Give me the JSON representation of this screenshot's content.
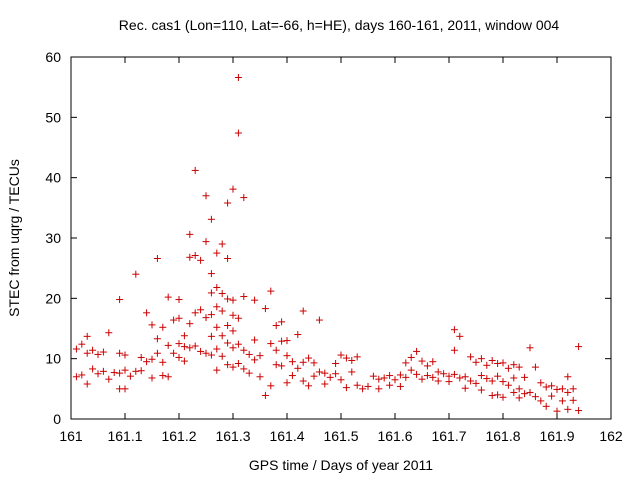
{
  "chart_data": {
    "type": "scatter",
    "title": "Rec. cas1 (Lon=110, Lat=-66, h=HE), days 160-161, 2011, window 004",
    "xlabel": "GPS time / Days of year 2011",
    "ylabel": "STEC from uqrg / TECUs",
    "xlim": [
      161,
      162
    ],
    "ylim": [
      0,
      60
    ],
    "xticks": [
      "161",
      "161.1",
      "161.2",
      "161.3",
      "161.4",
      "161.5",
      "161.6",
      "161.7",
      "161.8",
      "161.9",
      "162"
    ],
    "yticks": [
      "0",
      "10",
      "20",
      "30",
      "40",
      "50",
      "60"
    ],
    "grid": false,
    "legend": "none",
    "marker": "plus",
    "marker_color": "#cc0000",
    "series": [
      {
        "points": [
          [
            161.01,
            11.6
          ],
          [
            161.01,
            7.0
          ],
          [
            161.02,
            12.4
          ],
          [
            161.02,
            7.3
          ],
          [
            161.03,
            13.7
          ],
          [
            161.03,
            10.9
          ],
          [
            161.03,
            5.8
          ],
          [
            161.04,
            11.4
          ],
          [
            161.04,
            8.3
          ],
          [
            161.05,
            10.7
          ],
          [
            161.05,
            7.5
          ],
          [
            161.06,
            11.1
          ],
          [
            161.06,
            7.9
          ],
          [
            161.07,
            14.3
          ],
          [
            161.07,
            6.6
          ],
          [
            161.08,
            7.7
          ],
          [
            161.09,
            19.8
          ],
          [
            161.09,
            10.9
          ],
          [
            161.09,
            7.6
          ],
          [
            161.09,
            5.0
          ],
          [
            161.1,
            10.6
          ],
          [
            161.1,
            8.1
          ],
          [
            161.1,
            5.0
          ],
          [
            161.11,
            7.1
          ],
          [
            161.12,
            24.0
          ],
          [
            161.12,
            7.9
          ],
          [
            161.13,
            10.2
          ],
          [
            161.13,
            8.0
          ],
          [
            161.14,
            17.6
          ],
          [
            161.14,
            9.5
          ],
          [
            161.15,
            15.6
          ],
          [
            161.15,
            9.9
          ],
          [
            161.15,
            6.8
          ],
          [
            161.16,
            26.6
          ],
          [
            161.16,
            13.3
          ],
          [
            161.16,
            10.9
          ],
          [
            161.17,
            15.2
          ],
          [
            161.17,
            9.4
          ],
          [
            161.17,
            7.2
          ],
          [
            161.18,
            20.2
          ],
          [
            161.18,
            12.2
          ],
          [
            161.18,
            7.0
          ],
          [
            161.19,
            16.4
          ],
          [
            161.19,
            10.9
          ],
          [
            161.2,
            19.8
          ],
          [
            161.2,
            16.7
          ],
          [
            161.2,
            12.5
          ],
          [
            161.2,
            10.2
          ],
          [
            161.21,
            13.8
          ],
          [
            161.21,
            12.0
          ],
          [
            161.21,
            9.6
          ],
          [
            161.22,
            30.6
          ],
          [
            161.22,
            26.8
          ],
          [
            161.22,
            15.8
          ],
          [
            161.22,
            11.8
          ],
          [
            161.23,
            27.1
          ],
          [
            161.23,
            41.2
          ],
          [
            161.23,
            17.6
          ],
          [
            161.23,
            12.1
          ],
          [
            161.24,
            26.3
          ],
          [
            161.24,
            18.1
          ],
          [
            161.24,
            11.2
          ],
          [
            161.25,
            37.0
          ],
          [
            161.25,
            29.4
          ],
          [
            161.25,
            16.8
          ],
          [
            161.25,
            10.9
          ],
          [
            161.26,
            33.1
          ],
          [
            161.26,
            24.1
          ],
          [
            161.26,
            20.9
          ],
          [
            161.26,
            17.3
          ],
          [
            161.26,
            13.7
          ],
          [
            161.26,
            10.6
          ],
          [
            161.27,
            27.5
          ],
          [
            161.27,
            21.8
          ],
          [
            161.27,
            18.6
          ],
          [
            161.27,
            15.2
          ],
          [
            161.27,
            11.6
          ],
          [
            161.27,
            8.1
          ],
          [
            161.28,
            29.0
          ],
          [
            161.28,
            20.8
          ],
          [
            161.28,
            17.9
          ],
          [
            161.28,
            13.8
          ],
          [
            161.28,
            10.4
          ],
          [
            161.29,
            35.8
          ],
          [
            161.29,
            26.6
          ],
          [
            161.29,
            19.9
          ],
          [
            161.29,
            15.5
          ],
          [
            161.29,
            12.6
          ],
          [
            161.29,
            9.0
          ],
          [
            161.3,
            38.1
          ],
          [
            161.3,
            19.7
          ],
          [
            161.3,
            17.2
          ],
          [
            161.3,
            14.6
          ],
          [
            161.3,
            11.8
          ],
          [
            161.3,
            8.6
          ],
          [
            161.31,
            47.4
          ],
          [
            161.31,
            56.6
          ],
          [
            161.31,
            16.7
          ],
          [
            161.31,
            12.4
          ],
          [
            161.31,
            9.2
          ],
          [
            161.32,
            36.7
          ],
          [
            161.32,
            20.3
          ],
          [
            161.32,
            11.4
          ],
          [
            161.32,
            8.3
          ],
          [
            161.33,
            10.7
          ],
          [
            161.33,
            7.6
          ],
          [
            161.34,
            19.7
          ],
          [
            161.34,
            13.1
          ],
          [
            161.34,
            9.8
          ],
          [
            161.35,
            10.5
          ],
          [
            161.35,
            7.0
          ],
          [
            161.36,
            18.3
          ],
          [
            161.36,
            3.9
          ],
          [
            161.37,
            21.2
          ],
          [
            161.37,
            12.5
          ],
          [
            161.37,
            5.5
          ],
          [
            161.38,
            15.5
          ],
          [
            161.38,
            11.4
          ],
          [
            161.38,
            9.0
          ],
          [
            161.39,
            16.1
          ],
          [
            161.39,
            12.9
          ],
          [
            161.39,
            8.8
          ],
          [
            161.4,
            13.0
          ],
          [
            161.4,
            10.5
          ],
          [
            161.4,
            6.0
          ],
          [
            161.41,
            9.5
          ],
          [
            161.41,
            7.2
          ],
          [
            161.42,
            14.0
          ],
          [
            161.42,
            8.4
          ],
          [
            161.43,
            17.9
          ],
          [
            161.43,
            9.4
          ],
          [
            161.43,
            6.3
          ],
          [
            161.44,
            10.1
          ],
          [
            161.44,
            5.5
          ],
          [
            161.45,
            9.3
          ],
          [
            161.45,
            7.1
          ],
          [
            161.46,
            16.4
          ],
          [
            161.46,
            7.8
          ],
          [
            161.47,
            7.6
          ],
          [
            161.47,
            5.8
          ],
          [
            161.48,
            6.9
          ],
          [
            161.49,
            9.2
          ],
          [
            161.49,
            7.5
          ],
          [
            161.5,
            10.6
          ],
          [
            161.5,
            6.5
          ],
          [
            161.51,
            10.1
          ],
          [
            161.51,
            5.2
          ],
          [
            161.52,
            9.7
          ],
          [
            161.52,
            7.8
          ],
          [
            161.53,
            10.3
          ],
          [
            161.53,
            5.6
          ],
          [
            161.54,
            5.0
          ],
          [
            161.55,
            5.4
          ],
          [
            161.56,
            7.1
          ],
          [
            161.57,
            6.6
          ],
          [
            161.57,
            5.0
          ],
          [
            161.58,
            6.8
          ],
          [
            161.59,
            7.2
          ],
          [
            161.59,
            5.6
          ],
          [
            161.6,
            6.5
          ],
          [
            161.61,
            7.3
          ],
          [
            161.61,
            5.4
          ],
          [
            161.62,
            9.3
          ],
          [
            161.62,
            6.9
          ],
          [
            161.63,
            10.2
          ],
          [
            161.63,
            8.1
          ],
          [
            161.64,
            11.2
          ],
          [
            161.64,
            7.4
          ],
          [
            161.65,
            9.6
          ],
          [
            161.65,
            6.6
          ],
          [
            161.66,
            8.8
          ],
          [
            161.66,
            7.2
          ],
          [
            161.67,
            9.5
          ],
          [
            161.67,
            6.9
          ],
          [
            161.68,
            7.8
          ],
          [
            161.68,
            6.3
          ],
          [
            161.69,
            7.5
          ],
          [
            161.7,
            7.1
          ],
          [
            161.7,
            6.2
          ],
          [
            161.71,
            14.8
          ],
          [
            161.71,
            11.4
          ],
          [
            161.71,
            7.4
          ],
          [
            161.72,
            13.7
          ],
          [
            161.72,
            6.8
          ],
          [
            161.73,
            7.0
          ],
          [
            161.73,
            5.1
          ],
          [
            161.74,
            10.3
          ],
          [
            161.74,
            6.3
          ],
          [
            161.75,
            9.4
          ],
          [
            161.75,
            5.9
          ],
          [
            161.76,
            10.0
          ],
          [
            161.76,
            7.2
          ],
          [
            161.76,
            4.8
          ],
          [
            161.77,
            8.9
          ],
          [
            161.77,
            6.7
          ],
          [
            161.78,
            9.7
          ],
          [
            161.78,
            6.3
          ],
          [
            161.78,
            3.9
          ],
          [
            161.79,
            9.2
          ],
          [
            161.79,
            7.1
          ],
          [
            161.79,
            4.0
          ],
          [
            161.8,
            9.3
          ],
          [
            161.8,
            6.2
          ],
          [
            161.8,
            3.6
          ],
          [
            161.81,
            8.4
          ],
          [
            161.81,
            5.6
          ],
          [
            161.82,
            9.0
          ],
          [
            161.82,
            6.8
          ],
          [
            161.82,
            4.4
          ],
          [
            161.83,
            8.6
          ],
          [
            161.83,
            5.0
          ],
          [
            161.83,
            3.5
          ],
          [
            161.84,
            6.9
          ],
          [
            161.84,
            4.2
          ],
          [
            161.85,
            11.8
          ],
          [
            161.85,
            4.4
          ],
          [
            161.86,
            8.6
          ],
          [
            161.86,
            3.7
          ],
          [
            161.87,
            6.0
          ],
          [
            161.87,
            3.0
          ],
          [
            161.88,
            5.3
          ],
          [
            161.88,
            2.1
          ],
          [
            161.89,
            5.5
          ],
          [
            161.89,
            3.8
          ],
          [
            161.9,
            4.9
          ],
          [
            161.9,
            1.3
          ],
          [
            161.91,
            5.0
          ],
          [
            161.91,
            3.0
          ],
          [
            161.92,
            7.0
          ],
          [
            161.92,
            4.4
          ],
          [
            161.92,
            1.6
          ],
          [
            161.93,
            5.0
          ],
          [
            161.93,
            3.1
          ],
          [
            161.94,
            12.0
          ],
          [
            161.94,
            1.4
          ]
        ]
      }
    ]
  }
}
